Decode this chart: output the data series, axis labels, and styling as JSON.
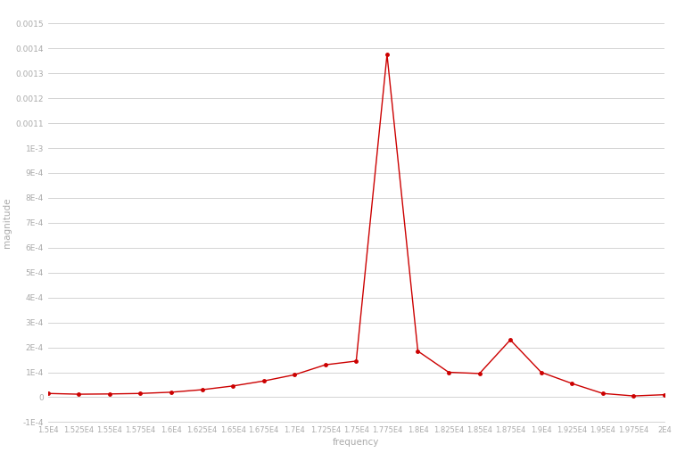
{
  "title": "",
  "xlabel": "frequency",
  "ylabel": "magnitude",
  "line_color": "#cc0000",
  "marker": "o",
  "marker_size": 2.5,
  "line_width": 1.0,
  "background_color": "#ffffff",
  "grid_color": "#cccccc",
  "xlim": [
    15000,
    20000
  ],
  "ylim": [
    -0.0001,
    0.0015
  ],
  "xtick_labels": [
    "1.5E4",
    "1.525E4",
    "1.55E4",
    "1.575E4",
    "1.6E4",
    "1.625E4",
    "1.65E4",
    "1.675E4",
    "1.7E4",
    "1.725E4",
    "1.75E4",
    "1.775E4",
    "1.8E4",
    "1.825E4",
    "1.85E4",
    "1.875E4",
    "1.9E4",
    "1.925E4",
    "1.95E4",
    "1.975E4",
    "2E4"
  ],
  "xtick_values": [
    15000,
    15250,
    15500,
    15750,
    16000,
    16250,
    16500,
    16750,
    17000,
    17250,
    17500,
    17750,
    18000,
    18250,
    18500,
    18750,
    19000,
    19250,
    19500,
    19750,
    20000
  ],
  "ytick_labels": [
    "-1E-4",
    "0",
    "1E-4",
    "2E-4",
    "3E-4",
    "4E-4",
    "5E-4",
    "6E-4",
    "7E-4",
    "8E-4",
    "9E-4",
    "1E-3",
    "0.0011",
    "0.0012",
    "0.0013",
    "0.0014",
    "0.0015"
  ],
  "ytick_values": [
    -0.0001,
    0.0,
    0.0001,
    0.0002,
    0.0003,
    0.0004,
    0.0005,
    0.0006,
    0.0007,
    0.0008,
    0.0009,
    0.001,
    0.0011,
    0.0012,
    0.0013,
    0.0014,
    0.0015
  ],
  "x_data": [
    15000,
    15250,
    15500,
    15750,
    16000,
    16250,
    16500,
    16750,
    17000,
    17250,
    17500,
    17750,
    18000,
    18250,
    18500,
    18750,
    19000,
    19250,
    19500,
    19750,
    20000
  ],
  "y_data": [
    1.5e-05,
    1.2e-05,
    1.3e-05,
    1.5e-05,
    2e-05,
    3e-05,
    4.5e-05,
    6.5e-05,
    9e-05,
    0.00013,
    0.000145,
    0.001375,
    0.000185,
    0.0001,
    9.5e-05,
    0.00023,
    0.0001,
    5.5e-05,
    1.5e-05,
    5e-06,
    1e-05
  ]
}
